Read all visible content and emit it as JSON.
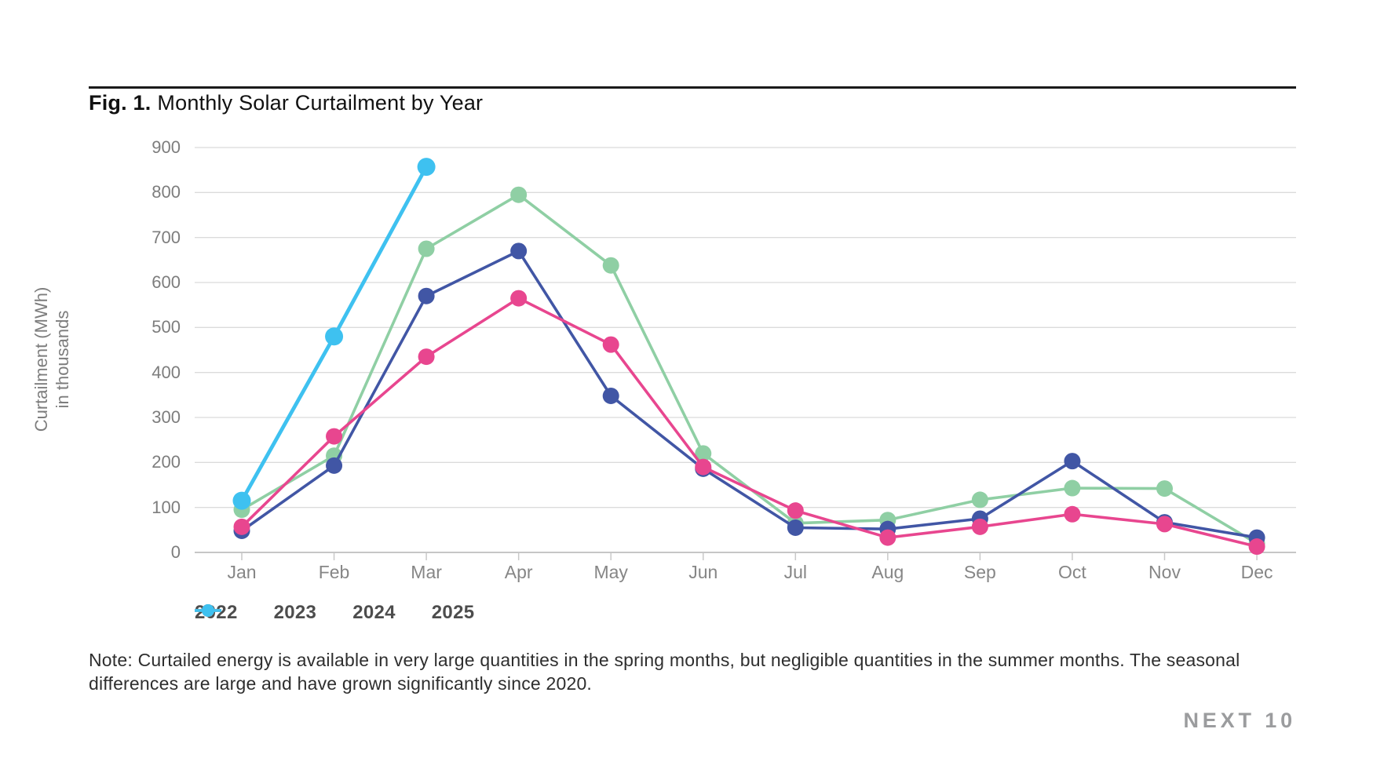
{
  "header": {
    "figure_label": "Fig. 1.",
    "title": "Monthly Solar Curtailment by Year"
  },
  "note": "Note: Curtailed energy is available in very large quantities in the spring months, but negligible quantities in the summer months. The seasonal differences are large and have grown significantly since 2020.",
  "footer": {
    "logo_text": "NEXT 10"
  },
  "colors": {
    "series_2022": "#E8468F",
    "series_2023": "#4156A5",
    "series_2024": "#8FCFA4",
    "series_2025": "#3EC1F0",
    "grid": "#DBDBDB",
    "axis": "#B3B3B3",
    "tick": "#C9C9C9",
    "tick_label": "#7D7D7D",
    "rule": "#1A1A1A",
    "logo": "#9B9C9E"
  },
  "chart_data": {
    "type": "line",
    "title": "Fig. 1. Monthly Solar Curtailment by Year",
    "xlabel": "",
    "ylabel": "Curtailment (MWh) in thousands",
    "ylabel_line1": "Curtailment (MWh)",
    "ylabel_line2": "in thousands",
    "categories": [
      "Jan",
      "Feb",
      "Mar",
      "Apr",
      "May",
      "Jun",
      "Jul",
      "Aug",
      "Sep",
      "Oct",
      "Nov",
      "Dec"
    ],
    "yticks": [
      0,
      100,
      200,
      300,
      400,
      500,
      600,
      700,
      800,
      900
    ],
    "ylim": [
      0,
      900
    ],
    "grid": true,
    "legend_position": "bottom",
    "series": [
      {
        "name": "2022",
        "color": "#E8468F",
        "values": [
          57,
          258,
          435,
          565,
          462,
          190,
          93,
          33,
          57,
          85,
          63,
          13
        ]
      },
      {
        "name": "2023",
        "color": "#4156A5",
        "values": [
          48,
          193,
          570,
          670,
          348,
          186,
          55,
          52,
          75,
          203,
          67,
          33
        ]
      },
      {
        "name": "2024",
        "color": "#8FCFA4",
        "values": [
          95,
          215,
          675,
          795,
          638,
          220,
          65,
          72,
          117,
          143,
          142,
          20
        ]
      },
      {
        "name": "2025",
        "color": "#3EC1F0",
        "values": [
          115,
          480,
          857,
          null,
          null,
          null,
          null,
          null,
          null,
          null,
          null,
          null
        ]
      }
    ]
  }
}
